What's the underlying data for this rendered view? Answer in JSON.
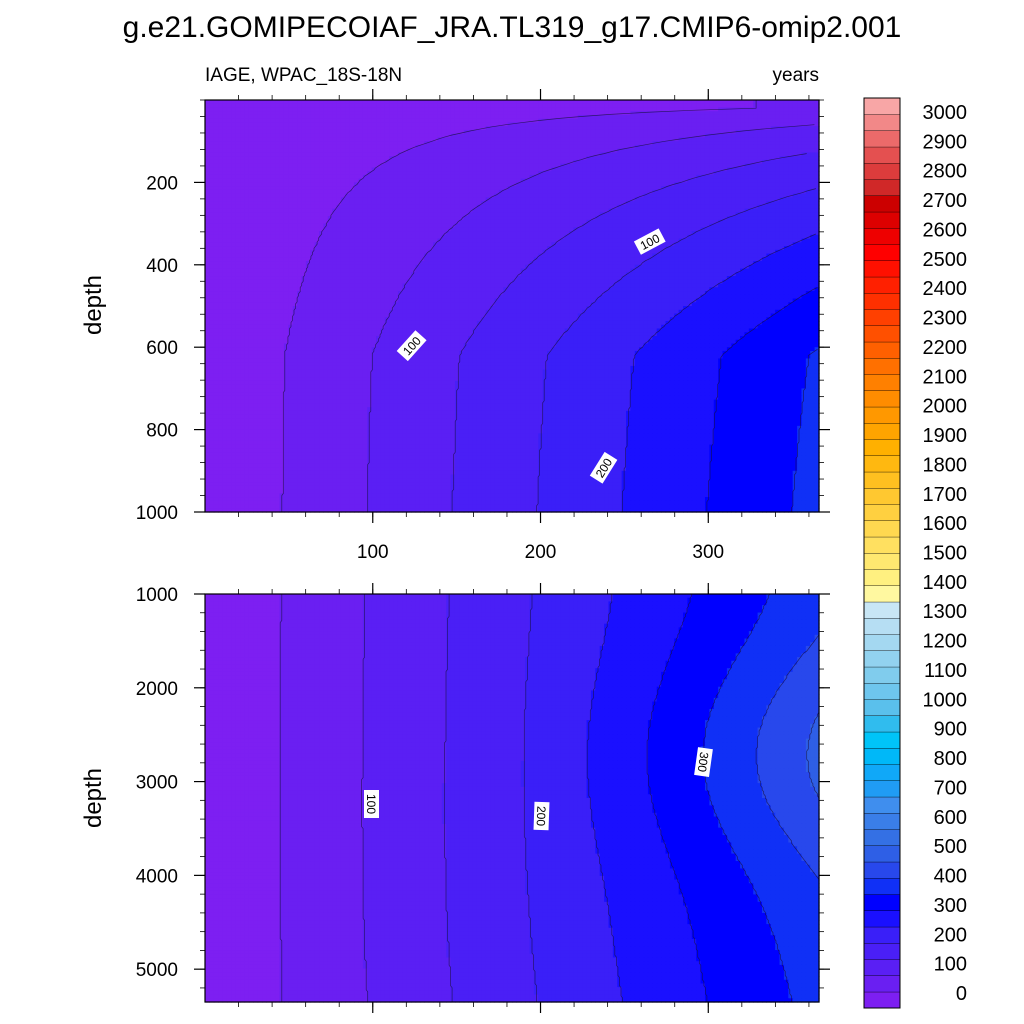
{
  "title": "g.e21.GOMIPECOIAF_JRA.TL319_g17.CMIP6-omip2.001",
  "left_subtitle": "IAGE, WPAC_18S-18N",
  "right_subtitle": "years",
  "chart_data": [
    {
      "type": "filled-contour",
      "panel": "upper",
      "ylabel": "depth",
      "xlabel": "",
      "xlim": [
        0,
        366
      ],
      "ylim": [
        1000,
        0
      ],
      "x_ticks": [
        "100",
        "200",
        "300"
      ],
      "x_tick_values": [
        100,
        200,
        300
      ],
      "y_ticks": [
        "200",
        "400",
        "600",
        "800",
        "1000"
      ],
      "y_tick_values": [
        200,
        400,
        600,
        800,
        1000
      ],
      "contour_interval": 50,
      "contour_labels": [
        "100",
        "100",
        "200"
      ]
    },
    {
      "type": "filled-contour",
      "panel": "lower",
      "ylabel": "depth",
      "xlabel": "",
      "xlim": [
        0,
        366
      ],
      "ylim": [
        5350,
        1000
      ],
      "x_ticks": [],
      "x_tick_values": [
        100,
        200,
        300
      ],
      "y_ticks": [
        "1000",
        "2000",
        "3000",
        "4000",
        "5000"
      ],
      "y_tick_values": [
        1000,
        2000,
        3000,
        4000,
        5000
      ],
      "contour_interval": 50,
      "contour_labels": [
        "100",
        "200",
        "300"
      ]
    }
  ],
  "colorbar": {
    "labels": [
      "3000",
      "2900",
      "2800",
      "2700",
      "2600",
      "2500",
      "2400",
      "2300",
      "2200",
      "2100",
      "2000",
      "1900",
      "1800",
      "1700",
      "1600",
      "1500",
      "1400",
      "1300",
      "1200",
      "1100",
      "1000",
      "900",
      "800",
      "700",
      "600",
      "500",
      "400",
      "300",
      "200",
      "100",
      "0"
    ],
    "colors": [
      "#7d1ff2",
      "#6a1ff2",
      "#5a1ff4",
      "#4a1ff6",
      "#3a1ff8",
      "#1a10ff",
      "#0000ff",
      "#1030f6",
      "#2848ec",
      "#2e5fe6",
      "#3470e4",
      "#3a7ee8",
      "#3f8eee",
      "#209cf4",
      "#10a8f8",
      "#00b8f8",
      "#00c4f8",
      "#30bcee",
      "#5ac0ec",
      "#6ec6ee",
      "#80cced",
      "#92d2ef",
      "#a4d8f1",
      "#b6def3",
      "#c8e6f5",
      "#fff8a0",
      "#fff080",
      "#ffe870",
      "#ffe060",
      "#ffd850",
      "#ffd040",
      "#ffc830",
      "#ffc020",
      "#ffb810",
      "#ffb000",
      "#ffa400",
      "#ff9800",
      "#ff8c00",
      "#ff8000",
      "#ff7000",
      "#ff6000",
      "#ff5000",
      "#ff4000",
      "#ff3000",
      "#ff2000",
      "#ff1000",
      "#ff0000",
      "#ee0000",
      "#dd0000",
      "#cc0000",
      "#d02828",
      "#dc3c3c",
      "#e45050",
      "#ec6a6a",
      "#f28888",
      "#f8a6a6"
    ]
  }
}
